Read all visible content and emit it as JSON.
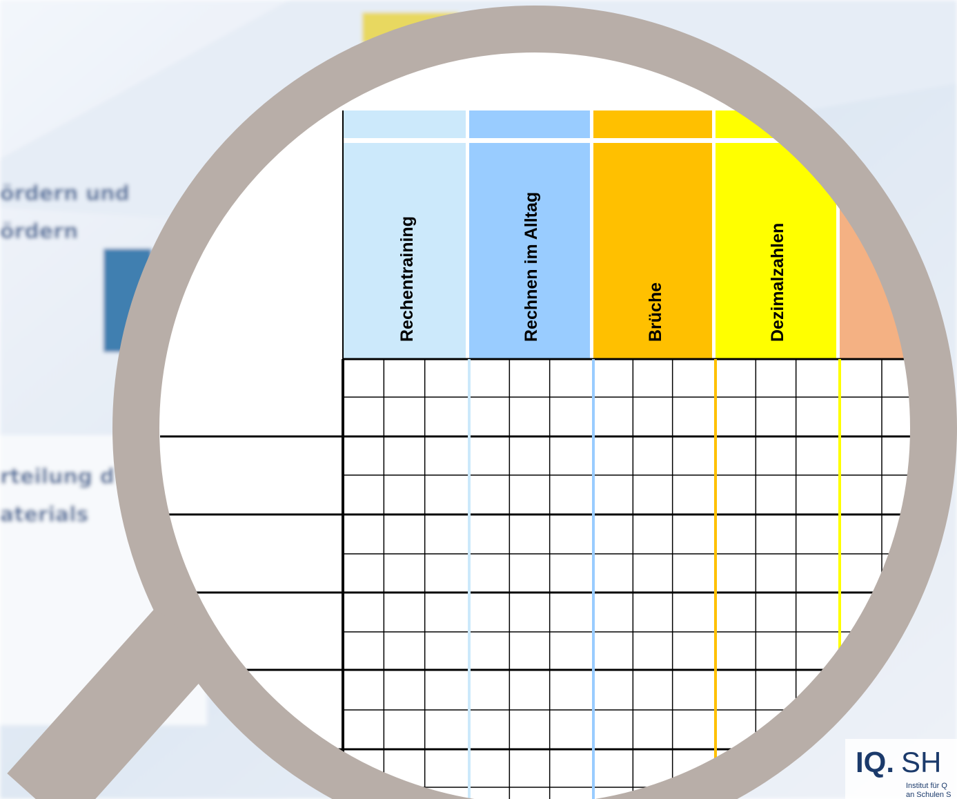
{
  "background": {
    "lines": [
      "ördern und",
      "ördern",
      "rteilung d",
      "aterials"
    ]
  },
  "table": {
    "headers": [
      "Rechentraining",
      "Rechnen im Alltag",
      "Brüche",
      "Dezimalzahlen"
    ]
  },
  "logo": {
    "mark": "IQ.",
    "name": "SH",
    "lines": [
      "Institut für Q",
      "an Schulen S"
    ]
  }
}
